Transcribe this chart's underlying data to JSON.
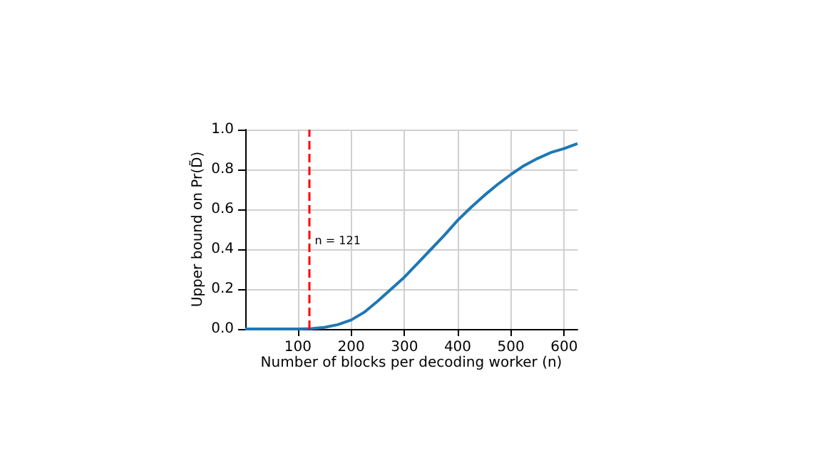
{
  "chart_data": {
    "type": "line",
    "xlabel": "Number of blocks per decoding worker (n)",
    "ylabel": "Upper bound on Pr(D̃)",
    "x": [
      1,
      50,
      100,
      125,
      150,
      175,
      200,
      225,
      250,
      275,
      300,
      325,
      350,
      375,
      400,
      425,
      450,
      475,
      500,
      525,
      550,
      575,
      600,
      625
    ],
    "series": [
      {
        "color": "#1f77b4",
        "values": [
          0,
          0,
          0,
          0.002,
          0.008,
          0.022,
          0.045,
          0.085,
          0.14,
          0.2,
          0.26,
          0.33,
          0.4,
          0.47,
          0.545,
          0.61,
          0.67,
          0.725,
          0.775,
          0.82,
          0.855,
          0.885,
          0.905,
          0.93
        ]
      }
    ],
    "xlim": [
      1,
      625
    ],
    "xticks": [
      100,
      200,
      300,
      400,
      500,
      600
    ],
    "ylim": [
      0,
      1
    ],
    "yticks": [
      {
        "value": 0,
        "label": "0.0"
      },
      {
        "value": 0.2,
        "label": "0.2"
      },
      {
        "value": 0.4,
        "label": "0.4"
      },
      {
        "value": 0.6,
        "label": "0.6"
      },
      {
        "value": 0.8,
        "label": "0.8"
      },
      {
        "value": 1,
        "label": "1.0"
      }
    ],
    "ref_lines": [
      {
        "axis": "x",
        "value": 121,
        "label": "n = 121",
        "color": "#ff0000",
        "line_style": "dashed"
      }
    ],
    "grid": true,
    "marker": "none",
    "line_style": "solid"
  }
}
